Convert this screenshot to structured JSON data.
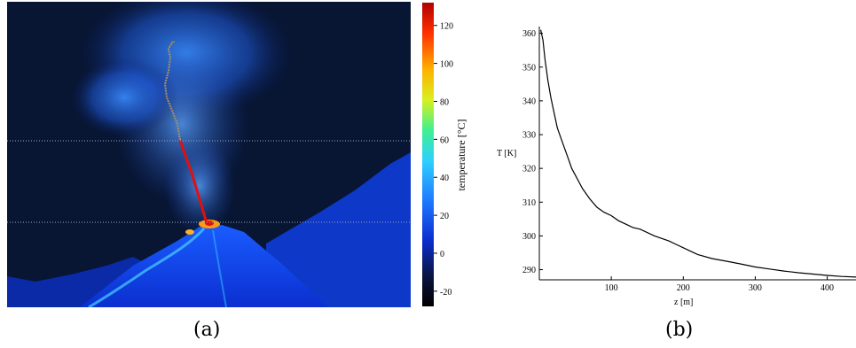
{
  "captions": {
    "a": "(a)",
    "b": "(b)"
  },
  "chart_data": [
    {
      "type": "heatmap",
      "description_panel": "a",
      "colorbar": {
        "label": "temperature [°C]",
        "ticks": [
          120,
          100,
          80,
          60,
          40,
          20,
          0,
          -20
        ],
        "range": [
          -28,
          132
        ],
        "colors": [
          "#000000",
          "#0a1440",
          "#0b2fd0",
          "#1f7bff",
          "#2fd0ff",
          "#3ff090",
          "#d8f020",
          "#ffb000",
          "#ff3000",
          "#b00000"
        ]
      },
      "colors": {
        "sky": "#081634",
        "plume": "#2a6cf0",
        "mountain": "#0d3cd8",
        "lava_hot": "#e01010",
        "lava_warm": "#ffb020",
        "trajectory_cool": "#a89060",
        "guide_lines": "#9aa8c8"
      }
    },
    {
      "type": "line",
      "description_panel": "b",
      "xlabel": "z [m]",
      "ylabel": "T [K]",
      "xlim": [
        0,
        440
      ],
      "ylim": [
        287,
        362
      ],
      "xticks": [
        100,
        200,
        300,
        400
      ],
      "yticks": [
        290,
        300,
        310,
        320,
        330,
        340,
        350,
        360
      ],
      "series": [
        {
          "x": [
            2,
            5,
            8,
            12,
            16,
            20,
            25,
            30,
            35,
            40,
            45,
            50,
            55,
            60,
            70,
            80,
            90,
            100,
            110,
            120,
            130,
            140,
            160,
            180,
            200,
            220,
            240,
            260,
            280,
            300,
            320,
            340,
            360,
            380,
            400,
            420,
            440
          ],
          "y": [
            361,
            358,
            352,
            346,
            341,
            337,
            332,
            329,
            326,
            323,
            320,
            318,
            316,
            314,
            311,
            308.5,
            307,
            306,
            304.5,
            303.5,
            302.5,
            302,
            300,
            298.5,
            296.5,
            294.5,
            293.3,
            292.5,
            291.7,
            290.8,
            290.2,
            289.6,
            289.1,
            288.7,
            288.3,
            288.0,
            287.8
          ]
        }
      ]
    }
  ]
}
